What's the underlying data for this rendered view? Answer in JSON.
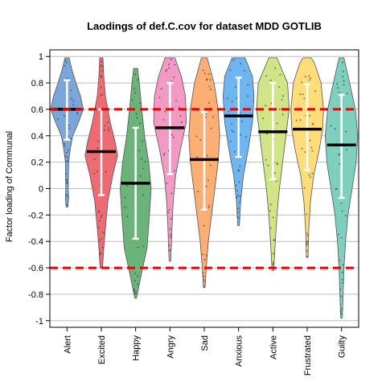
{
  "chart_data": {
    "type": "violin",
    "title": "Laodings of def.C.cov for dataset MDD GOTLIB",
    "xlabel": "",
    "ylabel": "Factor loading of Communal",
    "ylim": [
      -1.05,
      1.05
    ],
    "yticks": [
      -1,
      -0.8,
      -0.6,
      -0.4,
      -0.2,
      0,
      0.2,
      0.4,
      0.6,
      0.8,
      1
    ],
    "ytick_labels": [
      "-1",
      "-0.8",
      "-0.6",
      "-0.4",
      "-0.2",
      "0",
      "0.2",
      "0.4",
      "0.6",
      "0.8",
      "1"
    ],
    "grid": "horizontal",
    "reference_lines": [
      0.6,
      -0.6
    ],
    "reference_line_color": "#ee0000",
    "categories": [
      "Alert",
      "Excited",
      "Happy",
      "Angry",
      "Sad",
      "Anxious",
      "Active",
      "Frustrated",
      "Guilty"
    ],
    "series": [
      {
        "color": "#7aa6dc",
        "mean": 0.6,
        "whisker": [
          0.37,
          0.82
        ],
        "range": [
          -0.14,
          0.99
        ],
        "profile": [
          [
            -0.14,
            0.02
          ],
          [
            -0.08,
            0.04
          ],
          [
            0.0,
            0.03
          ],
          [
            0.2,
            0.04
          ],
          [
            0.3,
            0.08
          ],
          [
            0.4,
            0.14
          ],
          [
            0.5,
            0.28
          ],
          [
            0.6,
            0.4
          ],
          [
            0.7,
            0.33
          ],
          [
            0.8,
            0.22
          ],
          [
            0.9,
            0.12
          ],
          [
            0.99,
            0.05
          ]
        ]
      },
      {
        "color": "#ef6b73",
        "mean": 0.28,
        "whisker": [
          -0.05,
          0.6
        ],
        "range": [
          -0.6,
          0.99
        ],
        "profile": [
          [
            -0.6,
            0.03
          ],
          [
            -0.45,
            0.06
          ],
          [
            -0.3,
            0.1
          ],
          [
            -0.1,
            0.16
          ],
          [
            0.1,
            0.28
          ],
          [
            0.25,
            0.4
          ],
          [
            0.35,
            0.34
          ],
          [
            0.5,
            0.22
          ],
          [
            0.6,
            0.16
          ],
          [
            0.7,
            0.1
          ],
          [
            0.85,
            0.06
          ],
          [
            0.99,
            0.04
          ]
        ]
      },
      {
        "color": "#6bb27b",
        "mean": 0.04,
        "whisker": [
          -0.38,
          0.46
        ],
        "range": [
          -0.83,
          0.91
        ],
        "profile": [
          [
            -0.83,
            0.02
          ],
          [
            -0.65,
            0.14
          ],
          [
            -0.45,
            0.28
          ],
          [
            -0.2,
            0.34
          ],
          [
            0.0,
            0.38
          ],
          [
            0.2,
            0.32
          ],
          [
            0.4,
            0.22
          ],
          [
            0.6,
            0.15
          ],
          [
            0.8,
            0.09
          ],
          [
            0.91,
            0.05
          ]
        ]
      },
      {
        "color": "#f29ac4",
        "mean": 0.46,
        "whisker": [
          0.11,
          0.8
        ],
        "range": [
          -0.55,
          0.99
        ],
        "profile": [
          [
            -0.55,
            0.02
          ],
          [
            -0.3,
            0.05
          ],
          [
            -0.1,
            0.08
          ],
          [
            0.1,
            0.14
          ],
          [
            0.3,
            0.26
          ],
          [
            0.5,
            0.4
          ],
          [
            0.7,
            0.38
          ],
          [
            0.85,
            0.28
          ],
          [
            0.99,
            0.12
          ]
        ]
      },
      {
        "color": "#fcae73",
        "mean": 0.22,
        "whisker": [
          -0.16,
          0.58
        ],
        "range": [
          -0.75,
          0.99
        ],
        "profile": [
          [
            -0.75,
            0.02
          ],
          [
            -0.6,
            0.05
          ],
          [
            -0.4,
            0.1
          ],
          [
            -0.2,
            0.18
          ],
          [
            0.0,
            0.26
          ],
          [
            0.2,
            0.34
          ],
          [
            0.4,
            0.38
          ],
          [
            0.6,
            0.34
          ],
          [
            0.8,
            0.24
          ],
          [
            0.99,
            0.07
          ]
        ]
      },
      {
        "color": "#6fb5ef",
        "mean": 0.55,
        "whisker": [
          0.24,
          0.84
        ],
        "range": [
          -0.28,
          0.99
        ],
        "profile": [
          [
            -0.28,
            0.02
          ],
          [
            -0.1,
            0.05
          ],
          [
            0.1,
            0.12
          ],
          [
            0.3,
            0.24
          ],
          [
            0.5,
            0.34
          ],
          [
            0.7,
            0.38
          ],
          [
            0.85,
            0.34
          ],
          [
            0.99,
            0.16
          ]
        ]
      },
      {
        "color": "#d1e486",
        "mean": 0.43,
        "whisker": [
          0.07,
          0.8
        ],
        "range": [
          -0.62,
          0.99
        ],
        "profile": [
          [
            -0.62,
            0.02
          ],
          [
            -0.4,
            0.06
          ],
          [
            -0.2,
            0.1
          ],
          [
            0.0,
            0.16
          ],
          [
            0.2,
            0.24
          ],
          [
            0.4,
            0.32
          ],
          [
            0.6,
            0.4
          ],
          [
            0.8,
            0.36
          ],
          [
            0.9,
            0.22
          ],
          [
            0.99,
            0.1
          ]
        ]
      },
      {
        "color": "#fddc7a",
        "mean": 0.45,
        "whisker": [
          0.14,
          0.79
        ],
        "range": [
          -0.52,
          0.99
        ],
        "profile": [
          [
            -0.52,
            0.02
          ],
          [
            -0.3,
            0.04
          ],
          [
            -0.1,
            0.08
          ],
          [
            0.1,
            0.16
          ],
          [
            0.3,
            0.3
          ],
          [
            0.45,
            0.38
          ],
          [
            0.6,
            0.4
          ],
          [
            0.8,
            0.34
          ],
          [
            0.95,
            0.18
          ],
          [
            0.99,
            0.1
          ]
        ]
      },
      {
        "color": "#7fcfbf",
        "mean": 0.33,
        "whisker": [
          -0.07,
          0.71
        ],
        "range": [
          -0.98,
          0.99
        ],
        "profile": [
          [
            -0.98,
            0.02
          ],
          [
            -0.8,
            0.04
          ],
          [
            -0.6,
            0.06
          ],
          [
            -0.4,
            0.1
          ],
          [
            -0.2,
            0.16
          ],
          [
            0.0,
            0.26
          ],
          [
            0.2,
            0.36
          ],
          [
            0.4,
            0.4
          ],
          [
            0.6,
            0.34
          ],
          [
            0.8,
            0.2
          ],
          [
            0.99,
            0.06
          ]
        ]
      }
    ]
  }
}
